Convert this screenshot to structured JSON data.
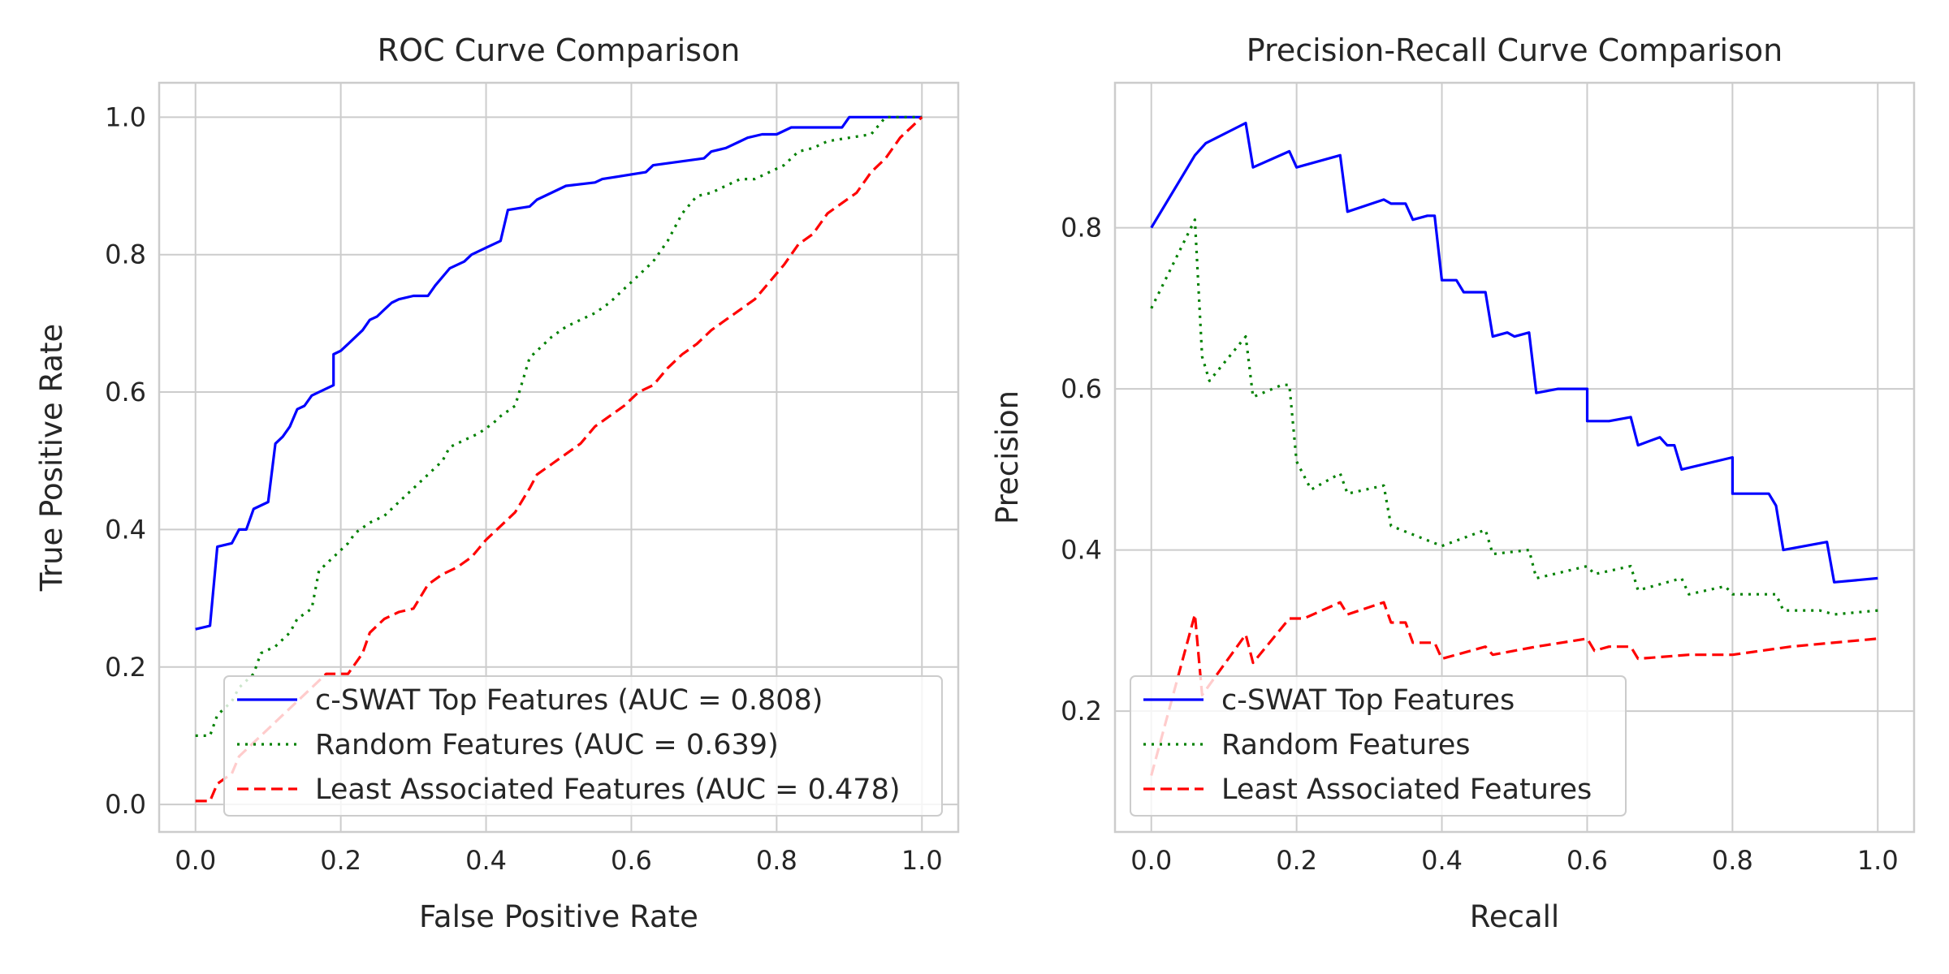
{
  "chart_data": [
    {
      "type": "line",
      "title": "ROC Curve Comparison",
      "xlabel": "False Positive Rate",
      "ylabel": "True Positive Rate",
      "xlim": [
        -0.05,
        1.05
      ],
      "ylim": [
        -0.04,
        1.05
      ],
      "xticks": [
        "0.0",
        "0.2",
        "0.4",
        "0.6",
        "0.8",
        "1.0"
      ],
      "yticks": [
        "0.0",
        "0.2",
        "0.4",
        "0.6",
        "0.8",
        "1.0"
      ],
      "grid": true,
      "legend_position": "lower-right",
      "series": [
        {
          "name": "c-SWAT Top Features (AUC = 0.808)",
          "color": "#0000ff",
          "style": "solid",
          "points": [
            [
              0.0,
              0.255
            ],
            [
              0.02,
              0.26
            ],
            [
              0.03,
              0.375
            ],
            [
              0.05,
              0.38
            ],
            [
              0.06,
              0.4
            ],
            [
              0.07,
              0.4
            ],
            [
              0.08,
              0.43
            ],
            [
              0.1,
              0.44
            ],
            [
              0.11,
              0.525
            ],
            [
              0.12,
              0.535
            ],
            [
              0.13,
              0.55
            ],
            [
              0.14,
              0.575
            ],
            [
              0.15,
              0.58
            ],
            [
              0.16,
              0.595
            ],
            [
              0.17,
              0.6
            ],
            [
              0.19,
              0.61
            ],
            [
              0.19,
              0.655
            ],
            [
              0.2,
              0.66
            ],
            [
              0.21,
              0.67
            ],
            [
              0.23,
              0.69
            ],
            [
              0.24,
              0.705
            ],
            [
              0.25,
              0.71
            ],
            [
              0.26,
              0.72
            ],
            [
              0.27,
              0.73
            ],
            [
              0.28,
              0.735
            ],
            [
              0.3,
              0.74
            ],
            [
              0.32,
              0.74
            ],
            [
              0.33,
              0.755
            ],
            [
              0.35,
              0.78
            ],
            [
              0.37,
              0.79
            ],
            [
              0.38,
              0.8
            ],
            [
              0.4,
              0.81
            ],
            [
              0.42,
              0.82
            ],
            [
              0.43,
              0.865
            ],
            [
              0.46,
              0.87
            ],
            [
              0.47,
              0.88
            ],
            [
              0.49,
              0.89
            ],
            [
              0.51,
              0.9
            ],
            [
              0.55,
              0.905
            ],
            [
              0.56,
              0.91
            ],
            [
              0.62,
              0.92
            ],
            [
              0.63,
              0.93
            ],
            [
              0.7,
              0.94
            ],
            [
              0.71,
              0.95
            ],
            [
              0.73,
              0.955
            ],
            [
              0.75,
              0.965
            ],
            [
              0.76,
              0.97
            ],
            [
              0.78,
              0.975
            ],
            [
              0.8,
              0.975
            ],
            [
              0.82,
              0.985
            ],
            [
              0.89,
              0.985
            ],
            [
              0.9,
              1.0
            ],
            [
              1.0,
              1.0
            ]
          ]
        },
        {
          "name": "Random Features (AUC = 0.639)",
          "color": "#008000",
          "style": "dotted",
          "points": [
            [
              0.0,
              0.1
            ],
            [
              0.02,
              0.1
            ],
            [
              0.03,
              0.13
            ],
            [
              0.05,
              0.15
            ],
            [
              0.06,
              0.17
            ],
            [
              0.08,
              0.19
            ],
            [
              0.09,
              0.22
            ],
            [
              0.11,
              0.23
            ],
            [
              0.13,
              0.25
            ],
            [
              0.14,
              0.27
            ],
            [
              0.16,
              0.285
            ],
            [
              0.17,
              0.34
            ],
            [
              0.19,
              0.36
            ],
            [
              0.21,
              0.38
            ],
            [
              0.22,
              0.395
            ],
            [
              0.24,
              0.41
            ],
            [
              0.26,
              0.42
            ],
            [
              0.28,
              0.44
            ],
            [
              0.3,
              0.46
            ],
            [
              0.32,
              0.48
            ],
            [
              0.34,
              0.5
            ],
            [
              0.35,
              0.52
            ],
            [
              0.37,
              0.53
            ],
            [
              0.39,
              0.54
            ],
            [
              0.41,
              0.555
            ],
            [
              0.42,
              0.565
            ],
            [
              0.44,
              0.58
            ],
            [
              0.46,
              0.65
            ],
            [
              0.47,
              0.66
            ],
            [
              0.49,
              0.68
            ],
            [
              0.51,
              0.695
            ],
            [
              0.53,
              0.705
            ],
            [
              0.55,
              0.715
            ],
            [
              0.57,
              0.73
            ],
            [
              0.59,
              0.75
            ],
            [
              0.61,
              0.77
            ],
            [
              0.63,
              0.79
            ],
            [
              0.65,
              0.82
            ],
            [
              0.67,
              0.86
            ],
            [
              0.69,
              0.885
            ],
            [
              0.71,
              0.89
            ],
            [
              0.73,
              0.9
            ],
            [
              0.75,
              0.91
            ],
            [
              0.77,
              0.91
            ],
            [
              0.79,
              0.92
            ],
            [
              0.81,
              0.93
            ],
            [
              0.83,
              0.95
            ],
            [
              0.85,
              0.955
            ],
            [
              0.87,
              0.965
            ],
            [
              0.9,
              0.97
            ],
            [
              0.93,
              0.975
            ],
            [
              0.95,
              1.0
            ],
            [
              1.0,
              1.0
            ]
          ]
        },
        {
          "name": "Least Associated Features (AUC = 0.478)",
          "color": "#ff0000",
          "style": "dashed",
          "points": [
            [
              0.0,
              0.005
            ],
            [
              0.02,
              0.005
            ],
            [
              0.03,
              0.03
            ],
            [
              0.05,
              0.045
            ],
            [
              0.06,
              0.07
            ],
            [
              0.08,
              0.09
            ],
            [
              0.1,
              0.11
            ],
            [
              0.12,
              0.13
            ],
            [
              0.14,
              0.15
            ],
            [
              0.16,
              0.17
            ],
            [
              0.18,
              0.19
            ],
            [
              0.21,
              0.19
            ],
            [
              0.23,
              0.22
            ],
            [
              0.24,
              0.25
            ],
            [
              0.26,
              0.27
            ],
            [
              0.28,
              0.28
            ],
            [
              0.3,
              0.285
            ],
            [
              0.32,
              0.32
            ],
            [
              0.34,
              0.335
            ],
            [
              0.36,
              0.345
            ],
            [
              0.38,
              0.36
            ],
            [
              0.4,
              0.385
            ],
            [
              0.42,
              0.405
            ],
            [
              0.44,
              0.425
            ],
            [
              0.46,
              0.46
            ],
            [
              0.47,
              0.48
            ],
            [
              0.49,
              0.495
            ],
            [
              0.51,
              0.51
            ],
            [
              0.53,
              0.525
            ],
            [
              0.55,
              0.55
            ],
            [
              0.57,
              0.565
            ],
            [
              0.59,
              0.58
            ],
            [
              0.61,
              0.6
            ],
            [
              0.63,
              0.61
            ],
            [
              0.65,
              0.635
            ],
            [
              0.67,
              0.655
            ],
            [
              0.69,
              0.67
            ],
            [
              0.71,
              0.69
            ],
            [
              0.73,
              0.705
            ],
            [
              0.75,
              0.72
            ],
            [
              0.77,
              0.735
            ],
            [
              0.79,
              0.76
            ],
            [
              0.81,
              0.785
            ],
            [
              0.83,
              0.815
            ],
            [
              0.85,
              0.83
            ],
            [
              0.87,
              0.86
            ],
            [
              0.89,
              0.875
            ],
            [
              0.91,
              0.89
            ],
            [
              0.93,
              0.92
            ],
            [
              0.95,
              0.94
            ],
            [
              0.97,
              0.97
            ],
            [
              1.0,
              1.0
            ]
          ]
        }
      ]
    },
    {
      "type": "line",
      "title": "Precision-Recall Curve Comparison",
      "xlabel": "Recall",
      "ylabel": "Precision",
      "xlim": [
        -0.05,
        1.05
      ],
      "ylim": [
        0.05,
        0.98
      ],
      "xticks": [
        "0.0",
        "0.2",
        "0.4",
        "0.6",
        "0.8",
        "1.0"
      ],
      "yticks": [
        "0.2",
        "0.4",
        "0.6",
        "0.8"
      ],
      "grid": true,
      "legend_position": "lower-left",
      "series": [
        {
          "name": "c-SWAT Top Features",
          "color": "#0000ff",
          "style": "solid",
          "points": [
            [
              0.0,
              0.8
            ],
            [
              0.06,
              0.89
            ],
            [
              0.075,
              0.905
            ],
            [
              0.13,
              0.93
            ],
            [
              0.14,
              0.875
            ],
            [
              0.19,
              0.895
            ],
            [
              0.2,
              0.875
            ],
            [
              0.26,
              0.89
            ],
            [
              0.27,
              0.82
            ],
            [
              0.32,
              0.835
            ],
            [
              0.33,
              0.83
            ],
            [
              0.35,
              0.83
            ],
            [
              0.36,
              0.81
            ],
            [
              0.38,
              0.815
            ],
            [
              0.39,
              0.815
            ],
            [
              0.4,
              0.735
            ],
            [
              0.42,
              0.735
            ],
            [
              0.43,
              0.72
            ],
            [
              0.46,
              0.72
            ],
            [
              0.47,
              0.665
            ],
            [
              0.49,
              0.67
            ],
            [
              0.5,
              0.665
            ],
            [
              0.52,
              0.67
            ],
            [
              0.53,
              0.595
            ],
            [
              0.56,
              0.6
            ],
            [
              0.6,
              0.6
            ],
            [
              0.6,
              0.56
            ],
            [
              0.63,
              0.56
            ],
            [
              0.66,
              0.565
            ],
            [
              0.67,
              0.53
            ],
            [
              0.7,
              0.54
            ],
            [
              0.71,
              0.53
            ],
            [
              0.72,
              0.53
            ],
            [
              0.73,
              0.5
            ],
            [
              0.8,
              0.515
            ],
            [
              0.8,
              0.47
            ],
            [
              0.85,
              0.47
            ],
            [
              0.86,
              0.455
            ],
            [
              0.87,
              0.4
            ],
            [
              0.93,
              0.41
            ],
            [
              0.94,
              0.36
            ],
            [
              1.0,
              0.365
            ]
          ]
        },
        {
          "name": "Random Features",
          "color": "#008000",
          "style": "dotted",
          "points": [
            [
              0.0,
              0.7
            ],
            [
              0.06,
              0.81
            ],
            [
              0.07,
              0.64
            ],
            [
              0.08,
              0.61
            ],
            [
              0.13,
              0.665
            ],
            [
              0.14,
              0.59
            ],
            [
              0.18,
              0.605
            ],
            [
              0.19,
              0.605
            ],
            [
              0.2,
              0.51
            ],
            [
              0.22,
              0.475
            ],
            [
              0.26,
              0.495
            ],
            [
              0.27,
              0.47
            ],
            [
              0.32,
              0.48
            ],
            [
              0.33,
              0.43
            ],
            [
              0.4,
              0.405
            ],
            [
              0.46,
              0.425
            ],
            [
              0.47,
              0.395
            ],
            [
              0.52,
              0.4
            ],
            [
              0.53,
              0.365
            ],
            [
              0.6,
              0.38
            ],
            [
              0.61,
              0.37
            ],
            [
              0.66,
              0.38
            ],
            [
              0.67,
              0.35
            ],
            [
              0.73,
              0.365
            ],
            [
              0.74,
              0.345
            ],
            [
              0.79,
              0.355
            ],
            [
              0.8,
              0.345
            ],
            [
              0.86,
              0.345
            ],
            [
              0.87,
              0.325
            ],
            [
              0.92,
              0.325
            ],
            [
              0.94,
              0.32
            ],
            [
              1.0,
              0.325
            ]
          ]
        },
        {
          "name": "Least Associated Features",
          "color": "#ff0000",
          "style": "dashed",
          "points": [
            [
              0.0,
              0.12
            ],
            [
              0.06,
              0.32
            ],
            [
              0.07,
              0.22
            ],
            [
              0.13,
              0.295
            ],
            [
              0.14,
              0.26
            ],
            [
              0.19,
              0.315
            ],
            [
              0.21,
              0.315
            ],
            [
              0.26,
              0.335
            ],
            [
              0.27,
              0.32
            ],
            [
              0.32,
              0.335
            ],
            [
              0.33,
              0.31
            ],
            [
              0.35,
              0.31
            ],
            [
              0.36,
              0.285
            ],
            [
              0.39,
              0.285
            ],
            [
              0.4,
              0.265
            ],
            [
              0.46,
              0.28
            ],
            [
              0.47,
              0.27
            ],
            [
              0.53,
              0.28
            ],
            [
              0.6,
              0.29
            ],
            [
              0.61,
              0.275
            ],
            [
              0.63,
              0.28
            ],
            [
              0.66,
              0.28
            ],
            [
              0.67,
              0.265
            ],
            [
              0.74,
              0.27
            ],
            [
              0.8,
              0.27
            ],
            [
              0.88,
              0.28
            ],
            [
              1.0,
              0.29
            ]
          ]
        }
      ]
    }
  ]
}
